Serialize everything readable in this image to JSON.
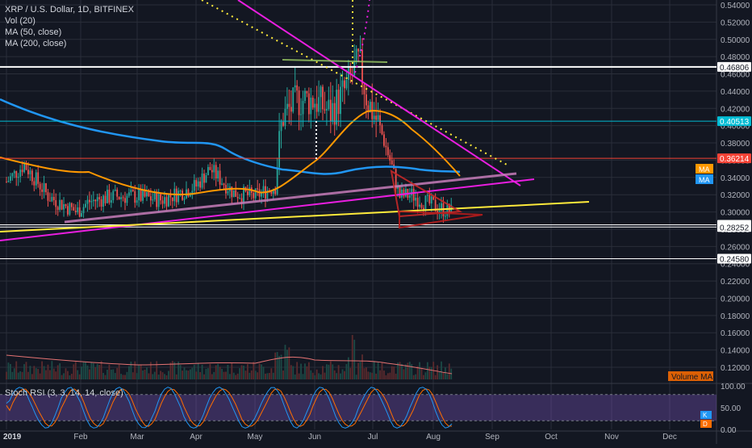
{
  "header": {
    "symbol_line": "XRP / U.S. Dollar, 1D, BITFINEX",
    "indicators": [
      "Vol (20)",
      "MA (50, close)",
      "MA (200, close)"
    ]
  },
  "rsi_label": "Stoch RSI (3, 3, 14, 14, close)",
  "volume_ma_label": "Volume MA",
  "ma_badges": [
    "MA",
    "MA"
  ],
  "rsi_badges": [
    "K",
    "D"
  ],
  "colors": {
    "background": "#131722",
    "grid": "#2a2e39",
    "up": "#26a69a",
    "down": "#ef5350",
    "ma50": "#ff9800",
    "ma200": "#2196f3",
    "magenta": "#e91ee0",
    "yellow": "#ffeb3b",
    "pink_line": "#c77dba",
    "white": "#ffffff",
    "cyan": "#00bcd4",
    "red_level": "#f44336",
    "rsi_k": "#2196f3",
    "rsi_d": "#ff6d00",
    "rsi_band": "#7e57c2"
  },
  "chart_data": [
    {
      "type": "candlestick",
      "symbol": "XRP / U.S. Dollar",
      "interval": "1D",
      "exchange": "BITFINEX",
      "x_tick_labels": [
        "2019",
        "Feb",
        "Mar",
        "Apr",
        "May",
        "Jun",
        "Jul",
        "Aug",
        "Sep",
        "Oct",
        "Nov",
        "Dec"
      ],
      "y_tick_labels": [
        "0.54000",
        "0.52000",
        "0.50000",
        "0.48000",
        "0.46000",
        "0.44000",
        "0.42000",
        "0.40000",
        "0.38000",
        "0.36000",
        "0.34000",
        "0.32000",
        "0.30000",
        "0.28000",
        "0.26000",
        "0.24000",
        "0.22000",
        "0.20000",
        "0.18000",
        "0.16000",
        "0.14000",
        "0.12000"
      ],
      "ylim": [
        0.11,
        0.545
      ],
      "price_level_labels": [
        {
          "value": 0.46806,
          "label": "0.46806",
          "color": "white"
        },
        {
          "value": 0.40513,
          "label": "0.40513",
          "color": "cyan"
        },
        {
          "value": 0.36214,
          "label": "0.36214",
          "color": "red"
        },
        {
          "value": 0.28512,
          "label": "0.28512",
          "color": "white"
        },
        {
          "value": 0.28252,
          "label": "0.28252",
          "color": "white"
        },
        {
          "value": 0.2458,
          "label": "0.24580",
          "color": "white"
        }
      ],
      "series": [
        {
          "month_index": 0,
          "open": 0.355,
          "high": 0.372,
          "low": 0.3,
          "close": 0.315
        },
        {
          "month_index": 1,
          "open": 0.315,
          "high": 0.33,
          "low": 0.29,
          "close": 0.318
        },
        {
          "month_index": 2,
          "open": 0.318,
          "high": 0.33,
          "low": 0.3,
          "close": 0.312
        },
        {
          "month_index": 3,
          "open": 0.312,
          "high": 0.37,
          "low": 0.295,
          "close": 0.33
        },
        {
          "month_index": 4,
          "open": 0.3,
          "high": 0.455,
          "low": 0.3,
          "close": 0.41
        },
        {
          "month_index": 5,
          "open": 0.41,
          "high": 0.495,
          "low": 0.375,
          "close": 0.43
        },
        {
          "month_index": 6,
          "open": 0.43,
          "high": 0.44,
          "low": 0.295,
          "close": 0.315
        },
        {
          "month_index": 7,
          "open": 0.315,
          "high": 0.33,
          "low": 0.298,
          "close": 0.306
        }
      ],
      "moving_averages": [
        {
          "name": "MA (50, close)",
          "color": "ma50"
        },
        {
          "name": "MA (200, close)",
          "color": "ma200"
        }
      ]
    },
    {
      "type": "stochastic_rsi",
      "title": "Stoch RSI (3, 3, 14, 14, close)",
      "y_tick_labels": [
        "100.00",
        "50.00",
        "0.00"
      ],
      "ylim": [
        0,
        100
      ],
      "upper_band": 80,
      "lower_band": 20
    }
  ]
}
